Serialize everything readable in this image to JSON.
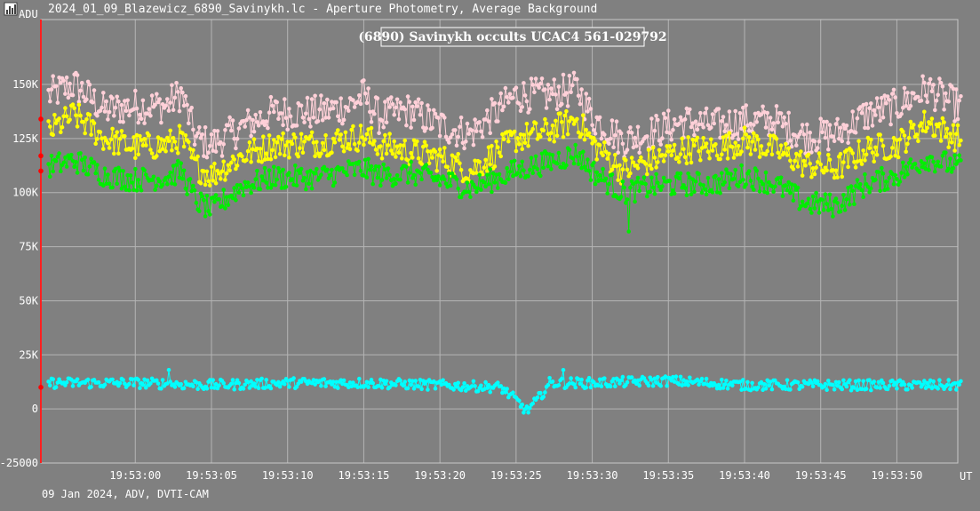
{
  "window": {
    "title": "2024_01_09_Blazewicz_6890_Savinykh.lc - Aperture Photometry, Average Background",
    "footer": "09 Jan 2024, ADV, DVTI-CAM"
  },
  "chart_data": {
    "type": "line",
    "title": "(6890) Savinykh occults UCAC4 561-029792",
    "ylabel": "ADU",
    "xlabel": "UT",
    "ylim": [
      -25000,
      180000
    ],
    "xlim": [
      -6.2,
      54.0
    ],
    "x_tick_values": [
      0,
      5,
      10,
      15,
      20,
      25,
      30,
      35,
      40,
      45,
      50
    ],
    "x_tick_labels": [
      "19:53:00",
      "19:53:05",
      "19:53:10",
      "19:53:15",
      "19:53:20",
      "19:53:25",
      "19:53:30",
      "19:53:35",
      "19:53:40",
      "19:53:45",
      "19:53:50"
    ],
    "y_tick_values": [
      -25000,
      0,
      25000,
      50000,
      75000,
      100000,
      125000,
      150000
    ],
    "y_tick_labels": [
      "-25000",
      "0",
      "25K",
      "50K",
      "75K",
      "100K",
      "125K",
      "150K"
    ],
    "grid": true,
    "n_points": 600,
    "x_start": -5.7,
    "x_step": 0.1,
    "series": [
      {
        "color": "#ffd0d8",
        "anchors": [
          [
            -5.7,
            145000
          ],
          [
            -4,
            150000
          ],
          [
            -2,
            138000
          ],
          [
            0,
            140000
          ],
          [
            2,
            140000
          ],
          [
            3,
            146000
          ],
          [
            4,
            125000
          ],
          [
            5,
            122000
          ],
          [
            7,
            130000
          ],
          [
            9,
            137000
          ],
          [
            12,
            137000
          ],
          [
            14,
            140000
          ],
          [
            15,
            145000
          ],
          [
            16,
            135000
          ],
          [
            18,
            138000
          ],
          [
            20,
            131000
          ],
          [
            22,
            127000
          ],
          [
            25,
            145000
          ],
          [
            27,
            145000
          ],
          [
            29,
            148000
          ],
          [
            30,
            135000
          ],
          [
            32,
            124000
          ],
          [
            34,
            128000
          ],
          [
            36,
            133000
          ],
          [
            38,
            131000
          ],
          [
            40,
            133000
          ],
          [
            42,
            133000
          ],
          [
            44,
            126000
          ],
          [
            46,
            127000
          ],
          [
            48,
            136000
          ],
          [
            50,
            140000
          ],
          [
            52,
            148000
          ],
          [
            54,
            140000
          ]
        ],
        "amp": 8000,
        "spikes": []
      },
      {
        "color": "#ffff00",
        "anchors": [
          [
            -5.7,
            128000
          ],
          [
            -4,
            136000
          ],
          [
            -2,
            125000
          ],
          [
            0,
            121000
          ],
          [
            2,
            122000
          ],
          [
            3,
            125000
          ],
          [
            4,
            112000
          ],
          [
            5,
            108000
          ],
          [
            7,
            117000
          ],
          [
            9,
            122000
          ],
          [
            12,
            123000
          ],
          [
            14,
            125000
          ],
          [
            15,
            126000
          ],
          [
            16,
            122000
          ],
          [
            18,
            119000
          ],
          [
            20,
            116000
          ],
          [
            22,
            110000
          ],
          [
            25,
            125000
          ],
          [
            27,
            128000
          ],
          [
            29,
            134000
          ],
          [
            30,
            123000
          ],
          [
            32,
            110000
          ],
          [
            34,
            115000
          ],
          [
            36,
            120000
          ],
          [
            38,
            120000
          ],
          [
            40,
            124000
          ],
          [
            42,
            120000
          ],
          [
            44,
            113000
          ],
          [
            46,
            111000
          ],
          [
            48,
            120000
          ],
          [
            50,
            122000
          ],
          [
            52,
            133000
          ],
          [
            54,
            125000
          ]
        ],
        "amp": 6500,
        "spikes": []
      },
      {
        "color": "#00ee00",
        "anchors": [
          [
            -5.7,
            112000
          ],
          [
            -4,
            115000
          ],
          [
            -2,
            108000
          ],
          [
            0,
            106000
          ],
          [
            2,
            107000
          ],
          [
            3,
            110000
          ],
          [
            4,
            96000
          ],
          [
            5,
            92000
          ],
          [
            7,
            103000
          ],
          [
            9,
            107000
          ],
          [
            12,
            107000
          ],
          [
            14,
            110000
          ],
          [
            15,
            111000
          ],
          [
            16,
            108000
          ],
          [
            18,
            109000
          ],
          [
            20,
            106000
          ],
          [
            22,
            102000
          ],
          [
            25,
            110000
          ],
          [
            27,
            114000
          ],
          [
            29,
            118000
          ],
          [
            30,
            110000
          ],
          [
            32,
            100000
          ],
          [
            34,
            103000
          ],
          [
            36,
            104000
          ],
          [
            38,
            104000
          ],
          [
            40,
            108000
          ],
          [
            42,
            104000
          ],
          [
            44,
            95000
          ],
          [
            46,
            94000
          ],
          [
            48,
            104000
          ],
          [
            50,
            108000
          ],
          [
            52,
            116000
          ],
          [
            54,
            112000
          ]
        ],
        "amp": 5500,
        "spikes": [
          [
            32.4,
            82000
          ]
        ]
      },
      {
        "color": "#00ffff",
        "anchors": [
          [
            -5.7,
            12000
          ],
          [
            0,
            12000
          ],
          [
            5,
            11000
          ],
          [
            10,
            12000
          ],
          [
            15,
            12000
          ],
          [
            20,
            11000
          ],
          [
            24,
            10000
          ],
          [
            25,
            4000
          ],
          [
            25.7,
            -1000
          ],
          [
            26.4,
            4000
          ],
          [
            27.2,
            12000
          ],
          [
            30,
            12000
          ],
          [
            35,
            13000
          ],
          [
            40,
            11000
          ],
          [
            45,
            11000
          ],
          [
            50,
            11000
          ],
          [
            54,
            11000
          ]
        ],
        "amp": 2400,
        "spikes": [
          [
            2.2,
            18000
          ],
          [
            28.1,
            18000
          ]
        ]
      }
    ],
    "red_markers": [
      134000,
      117000,
      110000,
      10000
    ]
  }
}
